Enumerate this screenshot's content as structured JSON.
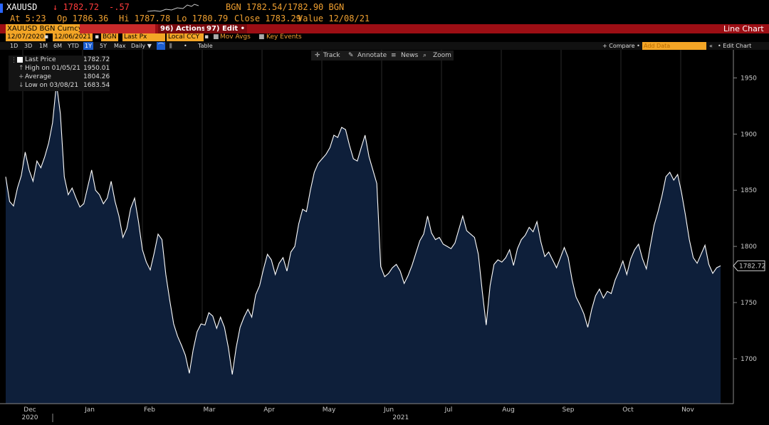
{
  "header": {
    "ticker": "XAUUSD",
    "last_price": "↓ 1782.72",
    "change": "-.57",
    "bid_ask": "BGN  1782.54/1782.90 BGN",
    "time": "At 5:23",
    "open": "Op 1786.36",
    "high": "Hi 1787.78",
    "low": "Lo 1780.79",
    "close": "Close 1783.29",
    "value": "Value 12/08/21"
  },
  "redbar": {
    "security": "XAUUSD BGN Curncy",
    "hidden": "",
    "actions": "96) Actions •",
    "edit": "97) Edit •",
    "chart_type": "Line Chart"
  },
  "controls": {
    "date_from": "12/07/2020",
    "date_to": "12/06/2021",
    "source": "BGN",
    "field": "Last Px",
    "currency": "Local CCY",
    "mov_avgs": "Mov Avgs",
    "key_events": "Key Events"
  },
  "ranges": [
    "1D",
    "3D",
    "1M",
    "6M",
    "YTD",
    "1Y",
    "5Y",
    "Max"
  ],
  "selected_range": "1Y",
  "periodicity": "Daily ▼",
  "table_label": "Table",
  "compare_label": "+ Compare •",
  "add_data_placeholder": "Add Data",
  "edit_chart_label": "• Edit Chart",
  "tools": {
    "track": "Track",
    "annotate": "Annotate",
    "news": "News",
    "zoom": "Zoom"
  },
  "legend": {
    "last_price_label": "Last Price",
    "last_price_value": "1782.72",
    "high_label": "High on 01/05/21",
    "high_value": "1950.01",
    "average_label": "Average",
    "average_value": "1804.26",
    "low_label": "Low on 03/08/21",
    "low_value": "1683.54"
  },
  "colors": {
    "area_fill": "#0e1f3a",
    "line": "#ffffff",
    "accent_orange": "#f3a526",
    "accent_red": "#9c0e14"
  },
  "chart_data": {
    "type": "area",
    "title": "",
    "xlabel": "",
    "ylabel": "",
    "ylim": [
      1660,
      1975
    ],
    "yticks": [
      1700,
      1750,
      1800,
      1850,
      1900,
      1950
    ],
    "month_labels": [
      "Dec",
      "Jan",
      "Feb",
      "Mar",
      "Apr",
      "May",
      "Jun",
      "Jul",
      "Aug",
      "Sep",
      "Oct",
      "Nov"
    ],
    "year_labels": [
      "2020",
      "2021"
    ],
    "last_value_label": "1782.72",
    "series": [
      {
        "values": [
          1862,
          1840,
          1836,
          1852,
          1863,
          1884,
          1868,
          1858,
          1876,
          1870,
          1880,
          1892,
          1910,
          1945,
          1918,
          1862,
          1846,
          1852,
          1843,
          1835,
          1838,
          1853,
          1868,
          1850,
          1846,
          1838,
          1843,
          1858,
          1840,
          1827,
          1808,
          1816,
          1834,
          1843,
          1822,
          1797,
          1786,
          1779,
          1794,
          1811,
          1806,
          1775,
          1752,
          1731,
          1720,
          1712,
          1703,
          1687,
          1708,
          1724,
          1731,
          1730,
          1741,
          1738,
          1727,
          1737,
          1728,
          1710,
          1686,
          1710,
          1728,
          1737,
          1744,
          1737,
          1757,
          1765,
          1780,
          1793,
          1788,
          1775,
          1785,
          1790,
          1778,
          1795,
          1800,
          1820,
          1833,
          1831,
          1850,
          1866,
          1874,
          1878,
          1882,
          1888,
          1899,
          1897,
          1906,
          1904,
          1890,
          1878,
          1876,
          1888,
          1899,
          1880,
          1868,
          1856,
          1782,
          1773,
          1776,
          1781,
          1784,
          1778,
          1767,
          1774,
          1783,
          1794,
          1805,
          1811,
          1827,
          1812,
          1806,
          1808,
          1802,
          1800,
          1798,
          1803,
          1815,
          1827,
          1814,
          1811,
          1808,
          1793,
          1760,
          1730,
          1765,
          1784,
          1788,
          1786,
          1790,
          1797,
          1783,
          1798,
          1806,
          1810,
          1817,
          1813,
          1822,
          1804,
          1791,
          1795,
          1788,
          1781,
          1790,
          1799,
          1790,
          1770,
          1755,
          1748,
          1740,
          1728,
          1744,
          1756,
          1762,
          1754,
          1760,
          1758,
          1770,
          1778,
          1787,
          1775,
          1789,
          1797,
          1802,
          1789,
          1780,
          1800,
          1819,
          1831,
          1845,
          1862,
          1866,
          1859,
          1864,
          1848,
          1828,
          1806,
          1790,
          1785,
          1793,
          1801,
          1784,
          1776,
          1781,
          1782.72
        ]
      }
    ]
  }
}
